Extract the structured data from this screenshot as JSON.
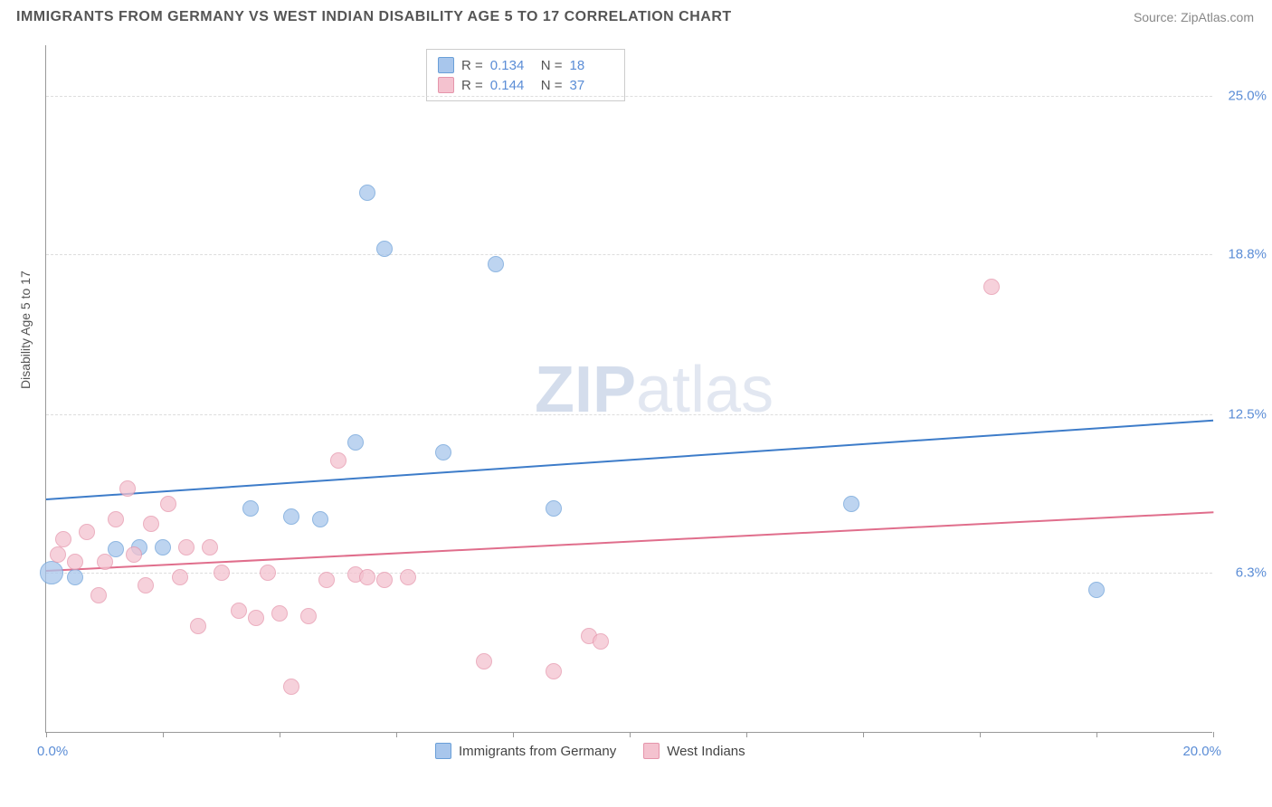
{
  "header": {
    "title": "IMMIGRANTS FROM GERMANY VS WEST INDIAN DISABILITY AGE 5 TO 17 CORRELATION CHART",
    "source_label": "Source:",
    "source_value": "ZipAtlas.com"
  },
  "chart": {
    "type": "scatter",
    "y_axis_title": "Disability Age 5 to 17",
    "background_color": "#ffffff",
    "grid_color": "#dddddd",
    "axis_color": "#999999",
    "xlim": [
      0,
      20
    ],
    "ylim": [
      0,
      27
    ],
    "y_ticks": [
      {
        "value": 6.3,
        "label": "6.3%"
      },
      {
        "value": 12.5,
        "label": "12.5%"
      },
      {
        "value": 18.8,
        "label": "18.8%"
      },
      {
        "value": 25.0,
        "label": "25.0%"
      }
    ],
    "x_tick_positions": [
      0,
      2,
      4,
      6,
      8,
      10,
      12,
      14,
      16,
      18,
      20
    ],
    "x_label_min": "0.0%",
    "x_label_max": "20.0%",
    "watermark": {
      "zip": "ZIP",
      "atlas": "atlas"
    },
    "series": [
      {
        "name": "Immigrants from Germany",
        "fill_color": "#a8c6ec",
        "stroke_color": "#6a9fd8",
        "opacity": 0.75,
        "marker_radius": 9,
        "trend": {
          "x1": 0,
          "y1": 9.2,
          "x2": 20,
          "y2": 12.3,
          "color": "#3d7cc9",
          "width": 2
        },
        "stats": {
          "R_label": "R =",
          "R": "0.134",
          "N_label": "N =",
          "N": "18"
        },
        "points": [
          {
            "x": 0.1,
            "y": 6.3,
            "r": 13
          },
          {
            "x": 0.5,
            "y": 6.1,
            "r": 9
          },
          {
            "x": 1.2,
            "y": 7.2,
            "r": 9
          },
          {
            "x": 1.6,
            "y": 7.3,
            "r": 9
          },
          {
            "x": 2.0,
            "y": 7.3,
            "r": 9
          },
          {
            "x": 3.5,
            "y": 8.8,
            "r": 9
          },
          {
            "x": 4.2,
            "y": 8.5,
            "r": 9
          },
          {
            "x": 4.7,
            "y": 8.4,
            "r": 9
          },
          {
            "x": 5.3,
            "y": 11.4,
            "r": 9
          },
          {
            "x": 5.5,
            "y": 21.2,
            "r": 9
          },
          {
            "x": 5.8,
            "y": 19.0,
            "r": 9
          },
          {
            "x": 6.8,
            "y": 11.0,
            "r": 9
          },
          {
            "x": 7.7,
            "y": 18.4,
            "r": 9
          },
          {
            "x": 8.7,
            "y": 8.8,
            "r": 9
          },
          {
            "x": 13.8,
            "y": 9.0,
            "r": 9
          },
          {
            "x": 18.0,
            "y": 5.6,
            "r": 9
          }
        ]
      },
      {
        "name": "West Indians",
        "fill_color": "#f4c2cf",
        "stroke_color": "#e595ab",
        "opacity": 0.75,
        "marker_radius": 9,
        "trend": {
          "x1": 0,
          "y1": 6.4,
          "x2": 20,
          "y2": 8.7,
          "color": "#e06e8c",
          "width": 2
        },
        "stats": {
          "R_label": "R =",
          "R": "0.144",
          "N_label": "N =",
          "N": "37"
        },
        "points": [
          {
            "x": 0.2,
            "y": 7.0,
            "r": 9
          },
          {
            "x": 0.3,
            "y": 7.6,
            "r": 9
          },
          {
            "x": 0.5,
            "y": 6.7,
            "r": 9
          },
          {
            "x": 0.7,
            "y": 7.9,
            "r": 9
          },
          {
            "x": 0.9,
            "y": 5.4,
            "r": 9
          },
          {
            "x": 1.0,
            "y": 6.7,
            "r": 9
          },
          {
            "x": 1.2,
            "y": 8.4,
            "r": 9
          },
          {
            "x": 1.4,
            "y": 9.6,
            "r": 9
          },
          {
            "x": 1.5,
            "y": 7.0,
            "r": 9
          },
          {
            "x": 1.7,
            "y": 5.8,
            "r": 9
          },
          {
            "x": 1.8,
            "y": 8.2,
            "r": 9
          },
          {
            "x": 2.1,
            "y": 9.0,
            "r": 9
          },
          {
            "x": 2.3,
            "y": 6.1,
            "r": 9
          },
          {
            "x": 2.4,
            "y": 7.3,
            "r": 9
          },
          {
            "x": 2.6,
            "y": 4.2,
            "r": 9
          },
          {
            "x": 2.8,
            "y": 7.3,
            "r": 9
          },
          {
            "x": 3.0,
            "y": 6.3,
            "r": 9
          },
          {
            "x": 3.3,
            "y": 4.8,
            "r": 9
          },
          {
            "x": 3.6,
            "y": 4.5,
            "r": 9
          },
          {
            "x": 3.8,
            "y": 6.3,
            "r": 9
          },
          {
            "x": 4.0,
            "y": 4.7,
            "r": 9
          },
          {
            "x": 4.2,
            "y": 1.8,
            "r": 9
          },
          {
            "x": 4.5,
            "y": 4.6,
            "r": 9
          },
          {
            "x": 4.8,
            "y": 6.0,
            "r": 9
          },
          {
            "x": 5.0,
            "y": 10.7,
            "r": 9
          },
          {
            "x": 5.3,
            "y": 6.2,
            "r": 9
          },
          {
            "x": 5.5,
            "y": 6.1,
            "r": 9
          },
          {
            "x": 5.8,
            "y": 6.0,
            "r": 9
          },
          {
            "x": 6.2,
            "y": 6.1,
            "r": 9
          },
          {
            "x": 7.5,
            "y": 2.8,
            "r": 9
          },
          {
            "x": 8.7,
            "y": 2.4,
            "r": 9
          },
          {
            "x": 9.3,
            "y": 3.8,
            "r": 9
          },
          {
            "x": 9.5,
            "y": 3.6,
            "r": 9
          },
          {
            "x": 16.2,
            "y": 17.5,
            "r": 9
          }
        ]
      }
    ],
    "bottom_legend": [
      {
        "swatch_fill": "#a8c6ec",
        "swatch_stroke": "#6a9fd8",
        "label": "Immigrants from Germany"
      },
      {
        "swatch_fill": "#f4c2cf",
        "swatch_stroke": "#e595ab",
        "label": "West Indians"
      }
    ]
  }
}
